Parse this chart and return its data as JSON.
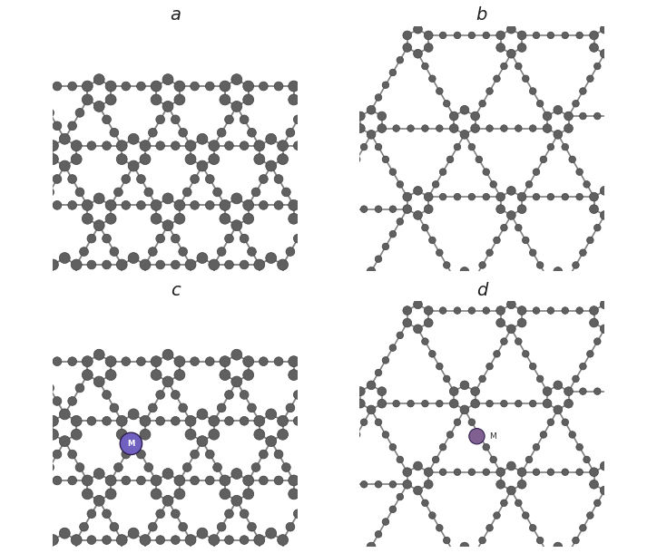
{
  "panel_labels": [
    "a",
    "b",
    "c",
    "d"
  ],
  "atom_color": "#606060",
  "atom_edge_color": "#404040",
  "bond_color": "#808080",
  "metal_color_large": "#7060c0",
  "metal_color_small": "#806090",
  "background": "#ffffff",
  "border_color": "#000000",
  "label_fontsize": 14,
  "label_style": "italic"
}
